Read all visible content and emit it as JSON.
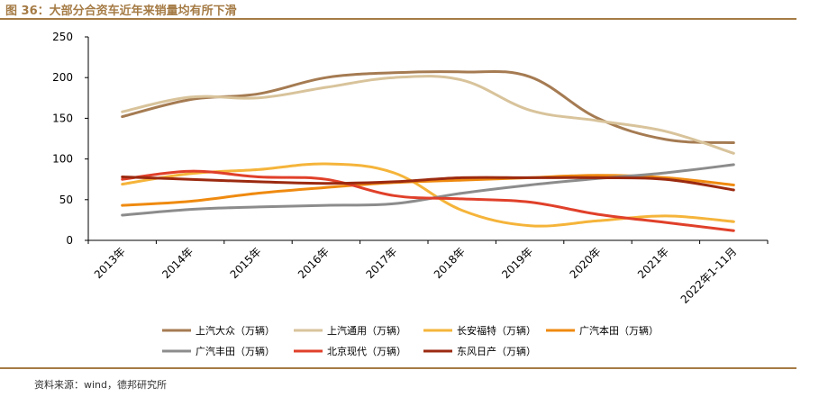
{
  "header": {
    "title": "图 36：大部分合资车近年来销量均有所下滑"
  },
  "footer": {
    "source": "资料来源：wind，德邦研究所"
  },
  "colors": {
    "accent": "#a57b45"
  },
  "chart_data": {
    "type": "line",
    "title": "",
    "xlabel": "",
    "ylabel": "",
    "ylim": [
      0,
      250
    ],
    "yticks": [
      0,
      50,
      100,
      150,
      200,
      250
    ],
    "grid": false,
    "legend_position": "bottom",
    "categories": [
      "2013年",
      "2014年",
      "2015年",
      "2016年",
      "2017年",
      "2018年",
      "2019年",
      "2020年",
      "2021年",
      "2022年1-11月"
    ],
    "series": [
      {
        "name": "上汽大众（万辆）",
        "color": "#a57b52",
        "values": [
          152,
          173,
          180,
          200,
          206,
          207,
          201,
          150,
          124,
          120
        ]
      },
      {
        "name": "上汽通用（万辆）",
        "color": "#d8c39b",
        "values": [
          158,
          176,
          175,
          188,
          200,
          197,
          160,
          147,
          134,
          107
        ]
      },
      {
        "name": "长安福特（万辆）",
        "color": "#f5b43a",
        "values": [
          69,
          82,
          87,
          94,
          83,
          37,
          18,
          24,
          30,
          23
        ]
      },
      {
        "name": "广汽本田（万辆）",
        "color": "#ef8a10",
        "values": [
          43,
          48,
          58,
          65,
          71,
          74,
          77,
          80,
          77,
          68
        ]
      },
      {
        "name": "广汽丰田（万辆）",
        "color": "#8c8c8c",
        "values": [
          31,
          38,
          41,
          43,
          45,
          58,
          68,
          76,
          83,
          93
        ]
      },
      {
        "name": "北京现代（万辆）",
        "color": "#e0402a",
        "values": [
          75,
          85,
          78,
          75,
          55,
          51,
          47,
          32,
          22,
          12
        ]
      },
      {
        "name": "东风日产（万辆）",
        "color": "#9b2a10",
        "values": [
          78,
          75,
          72,
          70,
          72,
          77,
          77,
          77,
          75,
          62
        ]
      }
    ]
  }
}
